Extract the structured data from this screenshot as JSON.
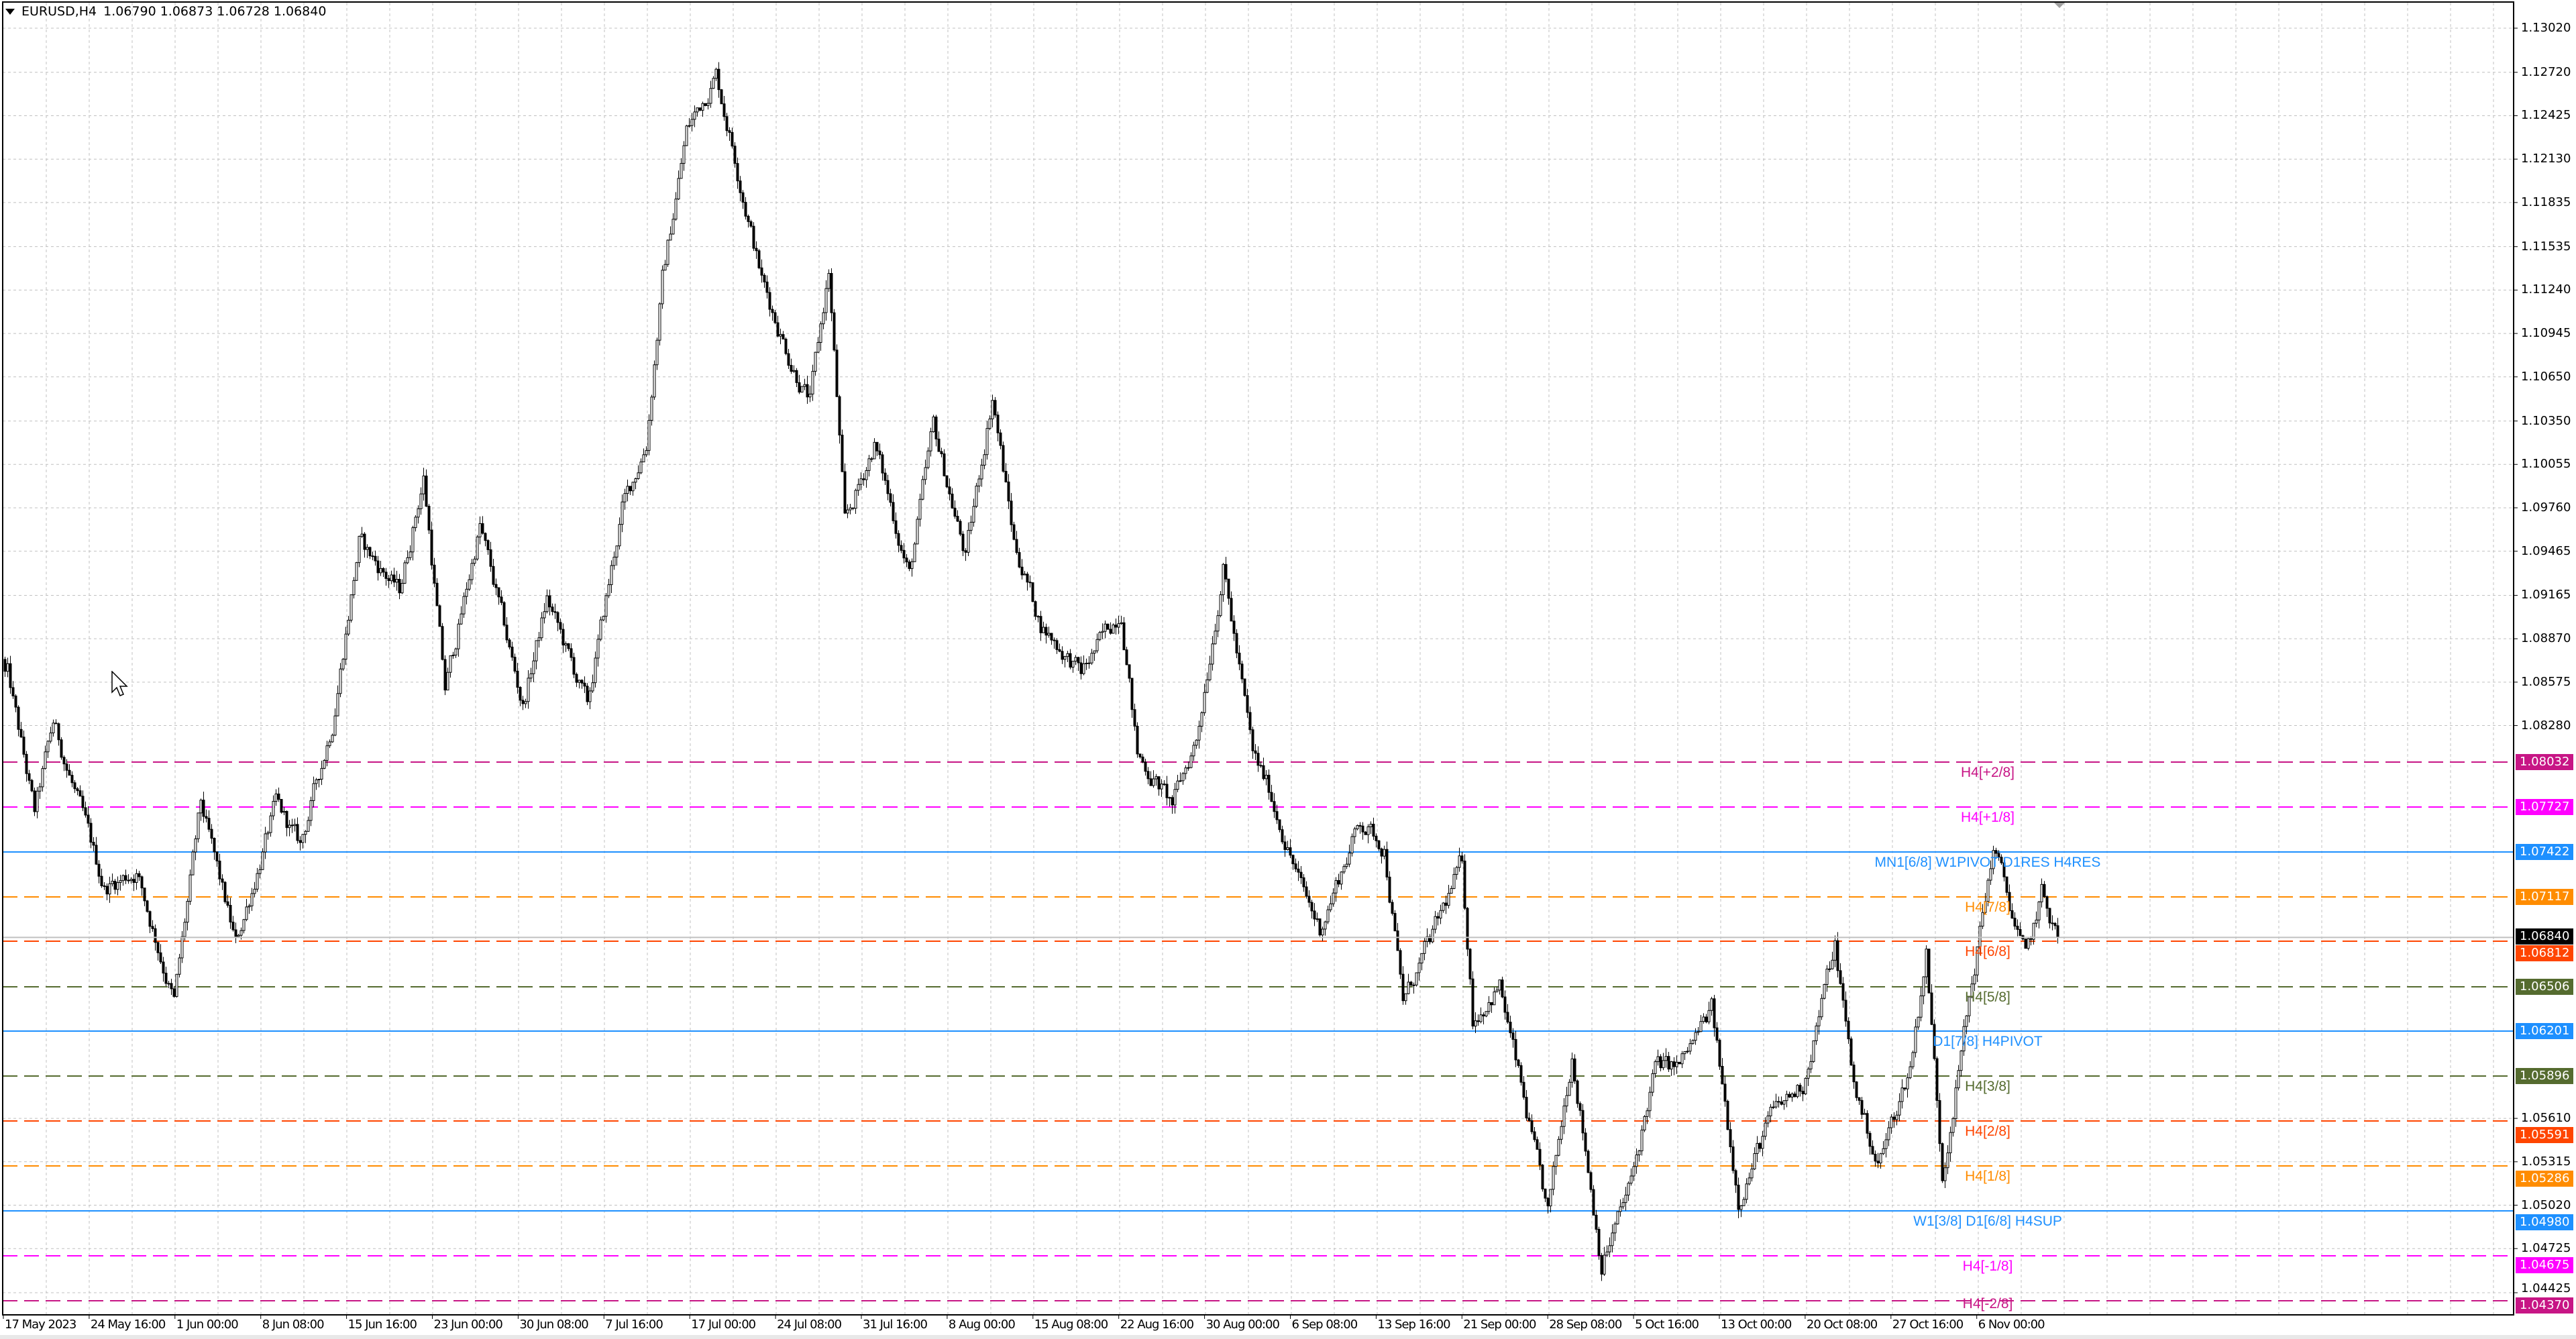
{
  "header": {
    "symbol": "EURUSD,H4",
    "open": "1.06790",
    "high": "1.06873",
    "low": "1.06728",
    "close": "1.06840"
  },
  "price_axis": {
    "ticks": [
      "1.13020",
      "1.12720",
      "1.12425",
      "1.12130",
      "1.11835",
      "1.11535",
      "1.11240",
      "1.10945",
      "1.10650",
      "1.10350",
      "1.10055",
      "1.09760",
      "1.09465",
      "1.09165",
      "1.08870",
      "1.08575",
      "1.08280",
      "1.05610",
      "1.05315",
      "1.05020",
      "1.04725",
      "1.04425"
    ],
    "current_price": {
      "value": "1.06840",
      "color": "#000000"
    }
  },
  "time_axis": {
    "labels": [
      "17 May 2023",
      "24 May 16:00",
      "1 Jun 00:00",
      "8 Jun 08:00",
      "15 Jun 16:00",
      "23 Jun 00:00",
      "30 Jun 08:00",
      "7 Jul 16:00",
      "17 Jul 00:00",
      "24 Jul 08:00",
      "31 Jul 16:00",
      "8 Aug 00:00",
      "15 Aug 08:00",
      "22 Aug 16:00",
      "30 Aug 00:00",
      "6 Sep 08:00",
      "13 Sep 16:00",
      "21 Sep 00:00",
      "28 Sep 08:00",
      "5 Oct 16:00",
      "13 Oct 00:00",
      "20 Oct 08:00",
      "27 Oct 16:00",
      "6 Nov 00:00"
    ]
  },
  "levels": [
    {
      "price": 1.08032,
      "value": "1.08032",
      "label": "H4[+2/8]",
      "color": "#c71585",
      "style": "dashed"
    },
    {
      "price": 1.07727,
      "value": "1.07727",
      "label": "H4[+1/8]",
      "color": "#ff00ff",
      "style": "dashed"
    },
    {
      "price": 1.07422,
      "value": "1.07422",
      "label": "MN1[6/8] W1PIVOT D1RES H4RES",
      "color": "#1e90ff",
      "style": "solid"
    },
    {
      "price": 1.07117,
      "value": "1.07117",
      "label": "H4[7/8]",
      "color": "#ff8c00",
      "style": "dashed"
    },
    {
      "price": 1.06812,
      "value": "1.06812",
      "label": "H4[6/8]",
      "color": "#ff4500",
      "style": "dashed"
    },
    {
      "price": 1.06506,
      "value": "1.06506",
      "label": "H4[5/8]",
      "color": "#556b2f",
      "style": "dashed"
    },
    {
      "price": 1.06201,
      "value": "1.06201",
      "label": "D1[7/8] H4PIVOT",
      "color": "#1e90ff",
      "style": "solid"
    },
    {
      "price": 1.05896,
      "value": "1.05896",
      "label": "H4[3/8]",
      "color": "#556b2f",
      "style": "dashed"
    },
    {
      "price": 1.05591,
      "value": "1.05591",
      "label": "H4[2/8]",
      "color": "#ff4500",
      "style": "dashed"
    },
    {
      "price": 1.05286,
      "value": "1.05286",
      "label": "H4[1/8]",
      "color": "#ff8c00",
      "style": "dashed"
    },
    {
      "price": 1.0498,
      "value": "1.04980",
      "label": "W1[3/8] D1[6/8] H4SUP",
      "color": "#1e90ff",
      "style": "solid"
    },
    {
      "price": 1.04675,
      "value": "1.04675",
      "label": "H4[-1/8]",
      "color": "#ff00ff",
      "style": "dashed"
    },
    {
      "price": 1.0437,
      "value": "1.04370",
      "label": "H4[-2/8]",
      "color": "#c71585",
      "style": "dashed"
    }
  ],
  "chart_data": {
    "type": "candlestick",
    "symbol": "EURUSD",
    "timeframe": "H4",
    "ylim": [
      1.04425,
      1.1302
    ],
    "grid": true,
    "approx_close_path": [
      [
        1,
        1.0863
      ],
      [
        11,
        1.0768
      ],
      [
        18,
        1.083
      ],
      [
        37,
        1.0718
      ],
      [
        49,
        1.0729
      ],
      [
        63,
        1.064
      ],
      [
        73,
        1.0774
      ],
      [
        86,
        1.0679
      ],
      [
        101,
        1.0774
      ],
      [
        110,
        1.0746
      ],
      [
        122,
        1.083
      ],
      [
        132,
        1.0953
      ],
      [
        147,
        1.0919
      ],
      [
        156,
        1.0997
      ],
      [
        164,
        1.0852
      ],
      [
        177,
        1.0964
      ],
      [
        193,
        1.0841
      ],
      [
        202,
        1.0914
      ],
      [
        217,
        1.0841
      ],
      [
        230,
        1.0975
      ],
      [
        239,
        1.102
      ],
      [
        245,
        1.1131
      ],
      [
        254,
        1.1232
      ],
      [
        265,
        1.1271
      ],
      [
        272,
        1.1215
      ],
      [
        282,
        1.1131
      ],
      [
        293,
        1.1075
      ],
      [
        300,
        1.1048
      ],
      [
        307,
        1.1137
      ],
      [
        313,
        1.0964
      ],
      [
        324,
        1.102
      ],
      [
        337,
        1.093
      ],
      [
        346,
        1.1031
      ],
      [
        358,
        1.0942
      ],
      [
        368,
        1.1053
      ],
      [
        376,
        1.0953
      ],
      [
        386,
        1.0897
      ],
      [
        401,
        1.0863
      ],
      [
        416,
        1.0908
      ],
      [
        422,
        1.0808
      ],
      [
        435,
        1.0774
      ],
      [
        444,
        1.0819
      ],
      [
        454,
        1.0936
      ],
      [
        465,
        1.0808
      ],
      [
        471,
        1.0785
      ],
      [
        483,
        1.0718
      ],
      [
        490,
        1.069
      ],
      [
        505,
        1.0763
      ],
      [
        514,
        1.0746
      ],
      [
        521,
        1.064
      ],
      [
        532,
        1.0685
      ],
      [
        543,
        1.0735
      ],
      [
        547,
        1.0629
      ],
      [
        557,
        1.0651
      ],
      [
        566,
        1.0573
      ],
      [
        575,
        1.0495
      ],
      [
        584,
        1.0607
      ],
      [
        595,
        1.0462
      ],
      [
        606,
        1.0517
      ],
      [
        615,
        1.0596
      ],
      [
        624,
        1.0596
      ],
      [
        636,
        1.0635
      ],
      [
        646,
        1.0506
      ],
      [
        658,
        1.0562
      ],
      [
        670,
        1.0584
      ],
      [
        682,
        1.0679
      ],
      [
        689,
        1.0584
      ],
      [
        698,
        1.0529
      ],
      [
        710,
        1.0596
      ],
      [
        716,
        1.0674
      ],
      [
        722,
        1.0523
      ],
      [
        731,
        1.0629
      ],
      [
        741,
        1.0746
      ],
      [
        753,
        1.0668
      ],
      [
        759,
        1.0713
      ],
      [
        765,
        1.0684
      ]
    ],
    "last_close": 1.0684
  }
}
